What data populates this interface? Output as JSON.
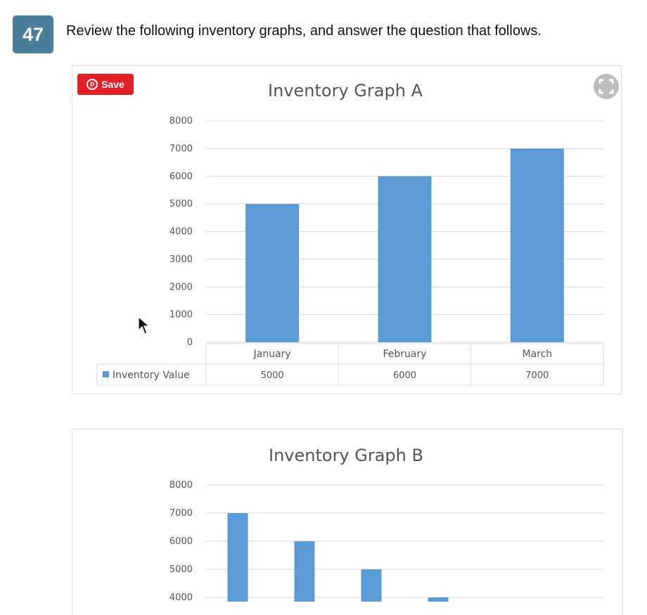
{
  "question": {
    "number": "47",
    "text": "Review the following inventory graphs, and answer the question that follows."
  },
  "save_button": {
    "label": "Save",
    "color": "#e12027"
  },
  "colors": {
    "bar": "#5b9bd5",
    "badge": "#4a7f9c",
    "grid": "#d9d9d9"
  },
  "chart_data": [
    {
      "type": "bar",
      "title": "Inventory Graph A",
      "categories": [
        "January",
        "February",
        "March"
      ],
      "series": [
        {
          "name": "Inventory Value",
          "values": [
            5000,
            6000,
            7000
          ]
        }
      ],
      "table": {
        "legend_label": "Inventory Value",
        "values": [
          "5000",
          "6000",
          "7000"
        ]
      },
      "yticks": [
        "0",
        "1000",
        "2000",
        "3000",
        "4000",
        "5000",
        "6000",
        "7000",
        "8000"
      ],
      "ylim": [
        0,
        8000
      ],
      "grid": true,
      "legend": "data table"
    },
    {
      "type": "bar",
      "title": "Inventory Graph B",
      "categories": [
        "",
        "",
        "",
        ""
      ],
      "series": [
        {
          "values": [
            7000,
            6000,
            5000,
            4000
          ]
        }
      ],
      "yticks": [
        "4000",
        "5000",
        "6000",
        "7000",
        "8000"
      ],
      "ylim": [
        0,
        8000
      ],
      "grid": true
    }
  ]
}
